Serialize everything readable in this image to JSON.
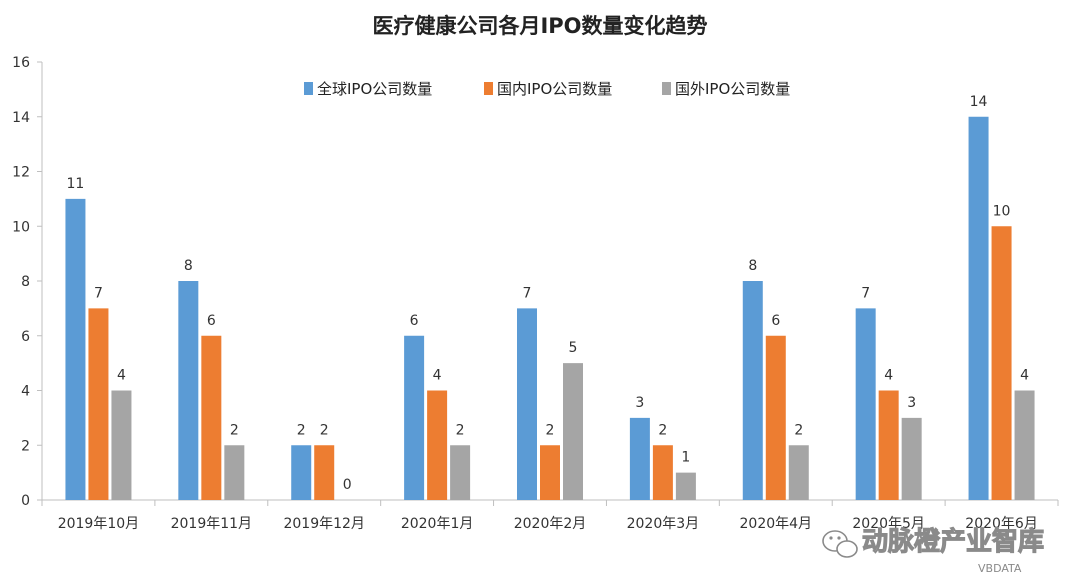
{
  "chart_data": {
    "type": "bar",
    "title": "医疗健康公司各月IPO数量变化趋势",
    "categories": [
      "2019年10月",
      "2019年11月",
      "2019年12月",
      "2020年1月",
      "2020年2月",
      "2020年3月",
      "2020年4月",
      "2020年5月",
      "2020年6月"
    ],
    "series": [
      {
        "name": "全球IPO公司数量",
        "color": "#5b9bd5",
        "values": [
          11,
          8,
          2,
          6,
          7,
          3,
          8,
          7,
          14
        ]
      },
      {
        "name": "国内IPO公司数量",
        "color": "#ed7d31",
        "values": [
          7,
          6,
          2,
          4,
          2,
          2,
          6,
          4,
          10
        ]
      },
      {
        "name": "国外IPO公司数量",
        "color": "#a5a5a5",
        "values": [
          4,
          2,
          0,
          2,
          5,
          1,
          2,
          3,
          4
        ]
      }
    ],
    "yticks": [
      0,
      2,
      4,
      6,
      8,
      10,
      12,
      14,
      16
    ],
    "ylim": [
      0,
      16
    ],
    "grid": false,
    "legend": "top-center",
    "data_labels": true
  },
  "watermark": {
    "text": "动脉橙产业智库",
    "subtext": "VBDATA",
    "icon": "wechat-icon"
  }
}
